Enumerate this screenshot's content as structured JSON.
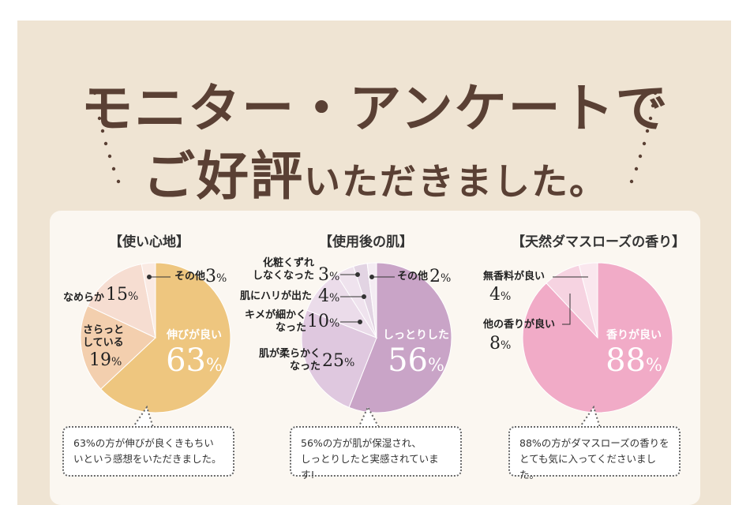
{
  "heading": {
    "line1": "モニター・アンケートで",
    "line2_big": "ご好評",
    "line2_small": "いただきました。"
  },
  "colors": {
    "background": "#efe4d3",
    "panel": "#fbf7f1",
    "title_text": "#5a4034"
  },
  "chart_data": [
    {
      "type": "pie",
      "title": "【使い心地】",
      "slices": [
        {
          "label": "伸びが良い",
          "value": 63,
          "color": "#eec67f"
        },
        {
          "label": "さらっとしている",
          "value": 19,
          "color": "#f3cfae"
        },
        {
          "label": "なめらか",
          "value": 15,
          "color": "#f6ddd1"
        },
        {
          "label": "その他",
          "value": 3,
          "color": "#faeae3"
        }
      ],
      "comment": [
        "63%の方が伸びが良くきもちい",
        "いという感想をいただきました。"
      ]
    },
    {
      "type": "pie",
      "title": "【使用後の肌】",
      "slices": [
        {
          "label": "しっとりした",
          "value": 56,
          "color": "#c9a4c7"
        },
        {
          "label": "肌が柔らかくなった",
          "value": 25,
          "color": "#dfc8df"
        },
        {
          "label": "キメが細かくなった",
          "value": 10,
          "color": "#ebdcea"
        },
        {
          "label": "肌にハリが出た",
          "value": 4,
          "color": "#efe3ee"
        },
        {
          "label": "化粧くずれしなくなった",
          "value": 3,
          "color": "#e2d4e3"
        },
        {
          "label": "その他",
          "value": 2,
          "color": "#f4ecf3"
        }
      ],
      "comment": [
        "56%の方が肌が保湿され、",
        "しっとりしたと実感されています!"
      ]
    },
    {
      "type": "pie",
      "title": "【天然ダマスローズの香り】",
      "slices": [
        {
          "label": "香りが良い",
          "value": 88,
          "color": "#f1abc7"
        },
        {
          "label": "他の香りが良い",
          "value": 8,
          "color": "#f6d3e1"
        },
        {
          "label": "無香料が良い",
          "value": 4,
          "color": "#fae7ee"
        }
      ],
      "comment": [
        "88%の方がダマスローズの香りを",
        "とても気に入ってくださいました。"
      ]
    }
  ],
  "labels": {
    "c1": {
      "sonota": "その他",
      "sonota_pct": "3",
      "nameraka": "なめらか",
      "nameraka_pct": "15",
      "sara1": "さらっと",
      "sara2": "している",
      "sara_pct": "19",
      "nobi": "伸びが良い",
      "nobi_pct": "63"
    },
    "c2": {
      "kesho1": "化粧くずれ",
      "kesho2": "しなくなった",
      "kesho_pct": "3",
      "sonota": "その他",
      "sonota_pct": "2",
      "hari": "肌にハリが出た",
      "hari_pct": "4",
      "kime1": "キメが細かく",
      "kime2": "なった",
      "kime_pct": "10",
      "yawa1": "肌が柔らかく",
      "yawa2": "なった",
      "yawa_pct": "25",
      "shittori": "しっとりした",
      "shittori_pct": "56"
    },
    "c3": {
      "muko": "無香料が良い",
      "muko_pct": "4",
      "hoka": "他の香りが良い",
      "hoka_pct": "8",
      "kaori": "香りが良い",
      "kaori_pct": "88"
    },
    "percent_sign": "%"
  }
}
